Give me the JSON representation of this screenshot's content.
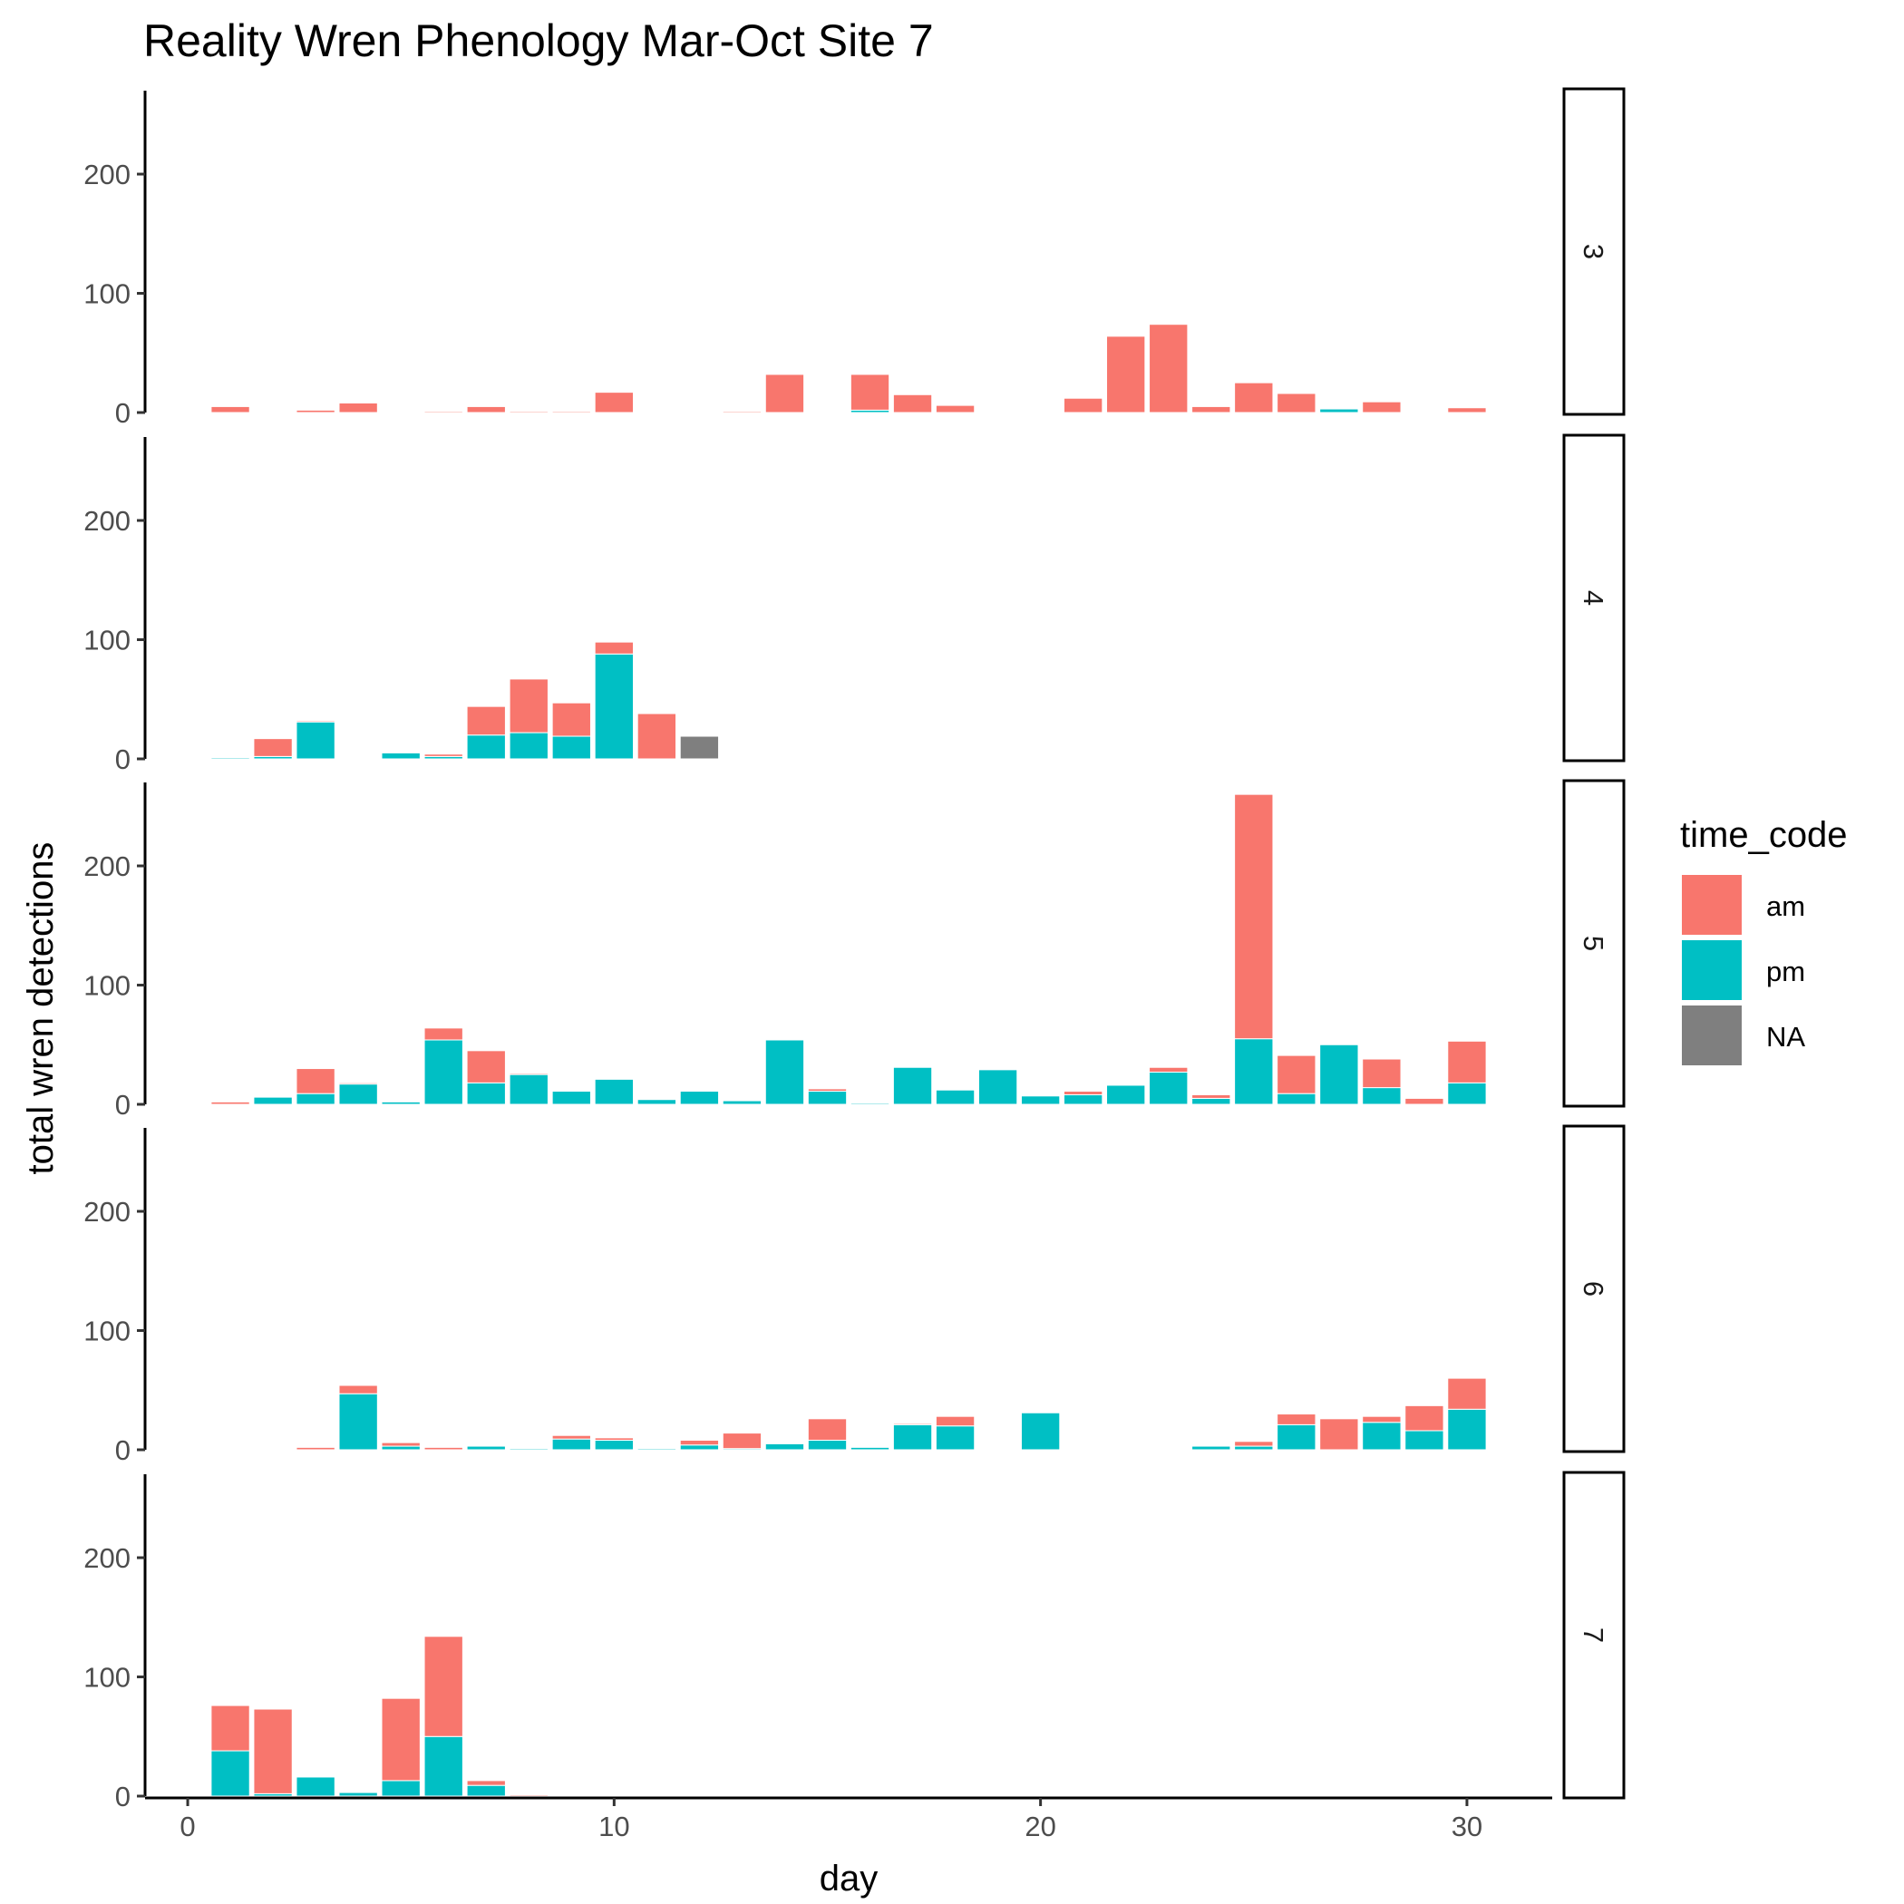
{
  "chart_data": {
    "type": "bar",
    "stacked": true,
    "title": "Reality Wren Phenology Mar-Oct Site 7",
    "xlabel": "day",
    "ylabel": "total wren detections",
    "xlim": [
      -1,
      32
    ],
    "ylim": [
      0,
      270
    ],
    "x_ticks": [
      0,
      10,
      20,
      30
    ],
    "y_ticks": [
      0,
      100,
      200
    ],
    "grid": false,
    "legend": {
      "title": "time_code",
      "placement": "right",
      "entries": [
        {
          "key": "am",
          "label": "am",
          "color": "#F8766D"
        },
        {
          "key": "pm",
          "label": "pm",
          "color": "#00BFC4"
        },
        {
          "key": "NA",
          "label": "NA",
          "color": "#7F7F7F"
        }
      ]
    },
    "stack_order": [
      "NA",
      "pm",
      "am"
    ],
    "panels": [
      {
        "facet": "3",
        "bars": [
          {
            "day": 1,
            "am": 5,
            "pm": 0
          },
          {
            "day": 3,
            "am": 2,
            "pm": 0
          },
          {
            "day": 4,
            "am": 8,
            "pm": 0
          },
          {
            "day": 6,
            "am": 1,
            "pm": 0
          },
          {
            "day": 7,
            "am": 5,
            "pm": 0
          },
          {
            "day": 8,
            "am": 1,
            "pm": 0
          },
          {
            "day": 9,
            "am": 1,
            "pm": 0
          },
          {
            "day": 10,
            "am": 17,
            "pm": 0
          },
          {
            "day": 13,
            "am": 1,
            "pm": 0
          },
          {
            "day": 14,
            "am": 32,
            "pm": 0
          },
          {
            "day": 16,
            "am": 30,
            "pm": 2
          },
          {
            "day": 17,
            "am": 15,
            "pm": 0
          },
          {
            "day": 18,
            "am": 6,
            "pm": 0
          },
          {
            "day": 21,
            "am": 12,
            "pm": 0
          },
          {
            "day": 22,
            "am": 64,
            "pm": 0
          },
          {
            "day": 23,
            "am": 74,
            "pm": 0
          },
          {
            "day": 24,
            "am": 5,
            "pm": 0
          },
          {
            "day": 25,
            "am": 25,
            "pm": 0
          },
          {
            "day": 26,
            "am": 16,
            "pm": 0
          },
          {
            "day": 27,
            "am": 0,
            "pm": 3
          },
          {
            "day": 28,
            "am": 9,
            "pm": 0
          },
          {
            "day": 30,
            "am": 4,
            "pm": 0
          }
        ]
      },
      {
        "facet": "4",
        "bars": [
          {
            "day": 1,
            "am": 0,
            "pm": 1
          },
          {
            "day": 2,
            "am": 15,
            "pm": 2
          },
          {
            "day": 3,
            "am": 1,
            "pm": 31
          },
          {
            "day": 5,
            "am": 0,
            "pm": 5
          },
          {
            "day": 6,
            "am": 2,
            "pm": 2
          },
          {
            "day": 7,
            "am": 24,
            "pm": 20
          },
          {
            "day": 8,
            "am": 45,
            "pm": 22
          },
          {
            "day": 9,
            "am": 28,
            "pm": 19
          },
          {
            "day": 10,
            "am": 10,
            "pm": 88
          },
          {
            "day": 11,
            "am": 38,
            "pm": 0
          },
          {
            "day": 12,
            "am": 0,
            "pm": 0,
            "NA": 19
          }
        ]
      },
      {
        "facet": "5",
        "bars": [
          {
            "day": 1,
            "am": 2,
            "pm": 0
          },
          {
            "day": 2,
            "am": 0,
            "pm": 6
          },
          {
            "day": 3,
            "am": 21,
            "pm": 9
          },
          {
            "day": 4,
            "am": 1,
            "pm": 17
          },
          {
            "day": 5,
            "am": 0,
            "pm": 2
          },
          {
            "day": 6,
            "am": 10,
            "pm": 54
          },
          {
            "day": 7,
            "am": 27,
            "pm": 18
          },
          {
            "day": 8,
            "am": 1,
            "pm": 25
          },
          {
            "day": 9,
            "am": 0,
            "pm": 11
          },
          {
            "day": 10,
            "am": 0,
            "pm": 21
          },
          {
            "day": 11,
            "am": 0,
            "pm": 4
          },
          {
            "day": 12,
            "am": 0,
            "pm": 11
          },
          {
            "day": 13,
            "am": 0,
            "pm": 3
          },
          {
            "day": 14,
            "am": 0,
            "pm": 54
          },
          {
            "day": 15,
            "am": 2,
            "pm": 11
          },
          {
            "day": 16,
            "am": 0,
            "pm": 1
          },
          {
            "day": 17,
            "am": 0,
            "pm": 31
          },
          {
            "day": 18,
            "am": 0,
            "pm": 12
          },
          {
            "day": 19,
            "am": 0,
            "pm": 29
          },
          {
            "day": 20,
            "am": 0,
            "pm": 7
          },
          {
            "day": 21,
            "am": 3,
            "pm": 8
          },
          {
            "day": 22,
            "am": 0,
            "pm": 16
          },
          {
            "day": 23,
            "am": 4,
            "pm": 27
          },
          {
            "day": 24,
            "am": 3,
            "pm": 5
          },
          {
            "day": 25,
            "am": 205,
            "pm": 55
          },
          {
            "day": 26,
            "am": 32,
            "pm": 9
          },
          {
            "day": 27,
            "am": 0,
            "pm": 50
          },
          {
            "day": 28,
            "am": 24,
            "pm": 14
          },
          {
            "day": 29,
            "am": 5,
            "pm": 0
          },
          {
            "day": 30,
            "am": 35,
            "pm": 18
          }
        ]
      },
      {
        "facet": "6",
        "bars": [
          {
            "day": 3,
            "am": 2,
            "pm": 0
          },
          {
            "day": 4,
            "am": 7,
            "pm": 47
          },
          {
            "day": 5,
            "am": 3,
            "pm": 3
          },
          {
            "day": 6,
            "am": 2,
            "pm": 0
          },
          {
            "day": 7,
            "am": 0,
            "pm": 3
          },
          {
            "day": 8,
            "am": 0,
            "pm": 1
          },
          {
            "day": 9,
            "am": 3,
            "pm": 9
          },
          {
            "day": 10,
            "am": 2,
            "pm": 8
          },
          {
            "day": 11,
            "am": 0,
            "pm": 1
          },
          {
            "day": 12,
            "am": 4,
            "pm": 4
          },
          {
            "day": 13,
            "am": 13,
            "pm": 1
          },
          {
            "day": 14,
            "am": 0,
            "pm": 5
          },
          {
            "day": 15,
            "am": 18,
            "pm": 8
          },
          {
            "day": 16,
            "am": 0,
            "pm": 2
          },
          {
            "day": 17,
            "am": 1,
            "pm": 21
          },
          {
            "day": 18,
            "am": 8,
            "pm": 20
          },
          {
            "day": 20,
            "am": 0,
            "pm": 31
          },
          {
            "day": 24,
            "am": 0,
            "pm": 3
          },
          {
            "day": 25,
            "am": 4,
            "pm": 3
          },
          {
            "day": 26,
            "am": 9,
            "pm": 21
          },
          {
            "day": 27,
            "am": 26,
            "pm": 0
          },
          {
            "day": 28,
            "am": 5,
            "pm": 23
          },
          {
            "day": 29,
            "am": 21,
            "pm": 16
          },
          {
            "day": 30,
            "am": 26,
            "pm": 34
          }
        ]
      },
      {
        "facet": "7",
        "bars": [
          {
            "day": 1,
            "am": 38,
            "pm": 38
          },
          {
            "day": 2,
            "am": 71,
            "pm": 2
          },
          {
            "day": 3,
            "am": 0,
            "pm": 16
          },
          {
            "day": 4,
            "am": 0,
            "pm": 3
          },
          {
            "day": 5,
            "am": 69,
            "pm": 13
          },
          {
            "day": 6,
            "am": 84,
            "pm": 50
          },
          {
            "day": 7,
            "am": 4,
            "pm": 9
          },
          {
            "day": 8,
            "am": 1,
            "pm": 0
          }
        ]
      }
    ]
  }
}
